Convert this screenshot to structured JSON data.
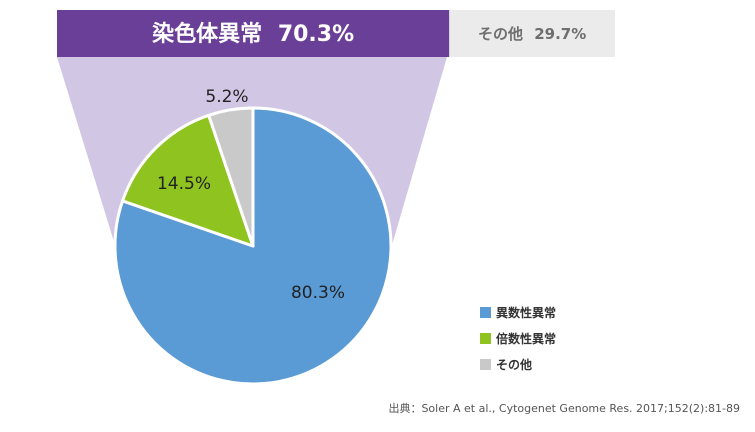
{
  "chart_data": {
    "type": "pie",
    "header": {
      "main": {
        "label": "染色体異常",
        "value": "70.3%",
        "color": "#6a3f98",
        "fraction": 0.703
      },
      "other": {
        "label": "その他",
        "value": "29.7%",
        "color": "#ebebeb",
        "fraction": 0.297
      }
    },
    "funnel_color": "#d1c6e3",
    "slices": [
      {
        "name": "異数性異常",
        "value": 80.3,
        "label": "80.3%",
        "color": "#5b9bd5"
      },
      {
        "name": "倍数性異常",
        "value": 14.5,
        "label": "14.5%",
        "color": "#8fc31f"
      },
      {
        "name": "その他",
        "value": 5.2,
        "label": "5.2%",
        "color": "#c9c9c9"
      }
    ],
    "legend": {
      "placement": "bottom-right",
      "items": [
        "異数性異常",
        "倍数性異常",
        "その他"
      ]
    },
    "source": "出典：Soler A et al., Cytogenet Genome Res. 2017;152(2):81-89"
  }
}
